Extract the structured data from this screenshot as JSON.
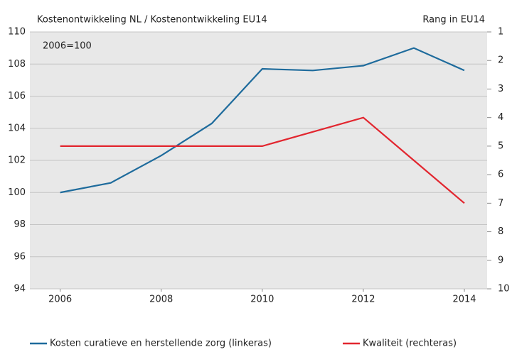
{
  "chart_data": {
    "type": "line",
    "title": "Kostenontwikkeling NL / Kostenontwikkeling EU14",
    "y2_title": "Rang in EU14",
    "annotation": "2006=100",
    "x": [
      2006,
      2007,
      2008,
      2009,
      2010,
      2011,
      2012,
      2013,
      2014
    ],
    "xlim": [
      2005.4,
      2014.45
    ],
    "xticks": [
      2006,
      2008,
      2010,
      2012,
      2014
    ],
    "ylim": [
      94,
      110
    ],
    "yticks": [
      94,
      96,
      98,
      100,
      102,
      104,
      106,
      108,
      110
    ],
    "y2lim": [
      10,
      1
    ],
    "y2ticks": [
      1,
      2,
      3,
      4,
      5,
      6,
      7,
      8,
      9,
      10
    ],
    "grid": true,
    "legend": "bottom",
    "series": [
      {
        "name": "Kosten curatieve en herstellende zorg (linkeras)",
        "color": "#1e6b9c",
        "values": [
          100,
          100.6,
          102.3,
          104.3,
          107.7,
          107.6,
          107.9,
          109.0,
          107.6
        ]
      },
      {
        "name": "Kwaliteit (rechteras)",
        "color": "#e2262f",
        "axis": "y2",
        "values": [
          5,
          5,
          5,
          5,
          5,
          4.5,
          4,
          5.5,
          7
        ]
      }
    ]
  }
}
